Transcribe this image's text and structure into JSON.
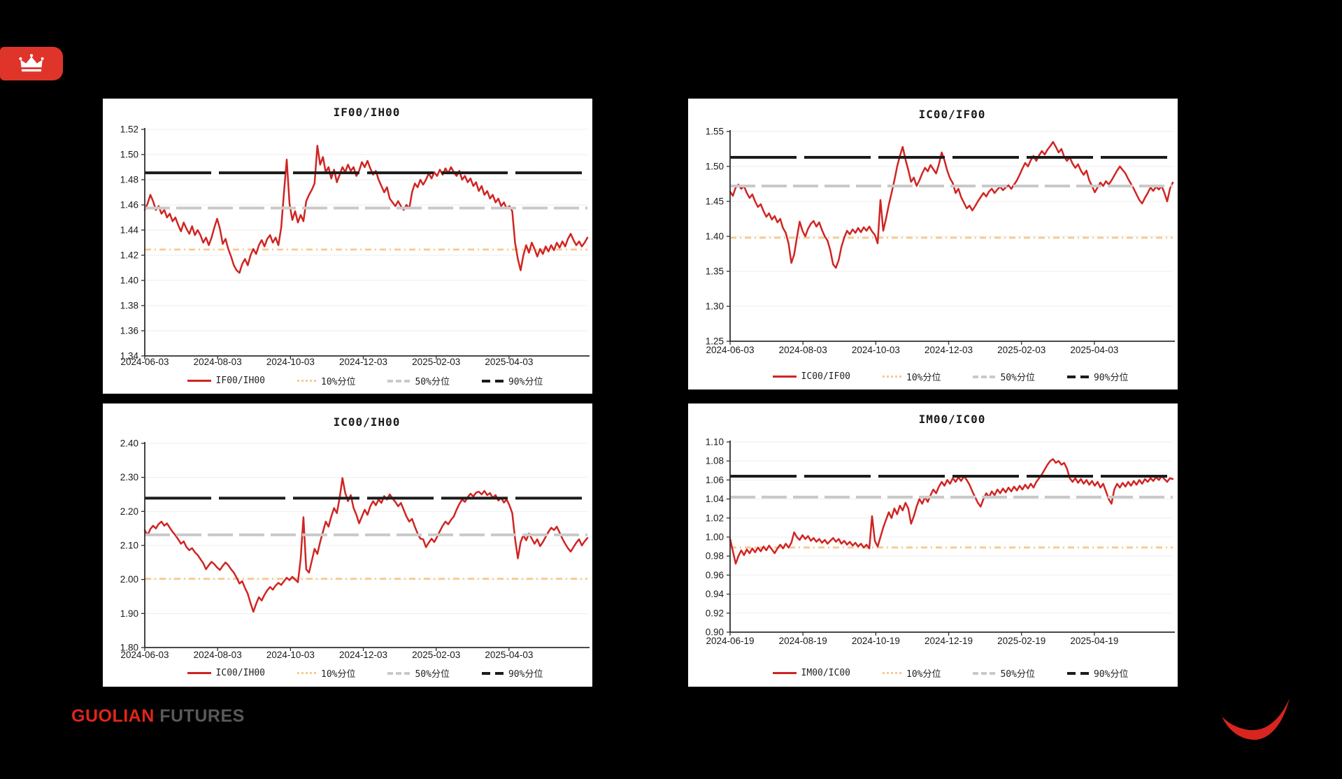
{
  "page": {
    "background": "#000000"
  },
  "brand": {
    "guolian": "GUOLIAN",
    "futures": "FUTURES",
    "guolian_color": "#e1251b",
    "futures_color": "#58595b",
    "badge_color": "#df342a",
    "swoosh_color": "#d8251f"
  },
  "style": {
    "series_color": "#cf2523",
    "p10_color": "#f8c98e",
    "p50_color": "#c9c9c9",
    "p90_color": "#1b1b1b",
    "grid_color": "#eeeeee",
    "axis_color": "#2f2f2f",
    "text_color": "#1a1a1a"
  },
  "chart_data": [
    {
      "type": "line",
      "title": "IF00/IH00",
      "series_name": "IF00/IH00",
      "legend": [
        "IF00/IH00",
        "10%分位",
        "50%分位",
        "90%分位"
      ],
      "x_tick_labels": [
        "2024-06-03",
        "2024-08-03",
        "2024-10-03",
        "2024-12-03",
        "2025-02-03",
        "2025-04-03"
      ],
      "ylim": [
        1.34,
        1.52
      ],
      "ytick_step": 0.02,
      "y_decimals": 2,
      "y_tick_labels": [
        "1.34",
        "1.36",
        "1.38",
        "1.40",
        "1.42",
        "1.44",
        "1.46",
        "1.48",
        "1.50",
        "1.52"
      ],
      "percentiles": {
        "p10": 1.4245,
        "p50": 1.4575,
        "p90": 1.4855
      },
      "values": [
        1.456,
        1.461,
        1.468,
        1.463,
        1.456,
        1.459,
        1.453,
        1.456,
        1.45,
        1.453,
        1.447,
        1.45,
        1.444,
        1.439,
        1.446,
        1.441,
        1.437,
        1.443,
        1.436,
        1.44,
        1.436,
        1.43,
        1.434,
        1.428,
        1.434,
        1.442,
        1.449,
        1.441,
        1.429,
        1.433,
        1.425,
        1.419,
        1.412,
        1.408,
        1.406,
        1.413,
        1.417,
        1.412,
        1.42,
        1.425,
        1.421,
        1.428,
        1.432,
        1.427,
        1.433,
        1.436,
        1.43,
        1.434,
        1.428,
        1.442,
        1.47,
        1.496,
        1.461,
        1.448,
        1.455,
        1.446,
        1.452,
        1.447,
        1.463,
        1.468,
        1.472,
        1.477,
        1.507,
        1.492,
        1.498,
        1.486,
        1.49,
        1.481,
        1.488,
        1.478,
        1.484,
        1.49,
        1.486,
        1.492,
        1.487,
        1.49,
        1.483,
        1.487,
        1.494,
        1.49,
        1.495,
        1.489,
        1.484,
        1.487,
        1.48,
        1.475,
        1.47,
        1.474,
        1.465,
        1.462,
        1.459,
        1.463,
        1.459,
        1.456,
        1.46,
        1.457,
        1.47,
        1.477,
        1.474,
        1.48,
        1.476,
        1.48,
        1.485,
        1.481,
        1.486,
        1.483,
        1.488,
        1.484,
        1.489,
        1.485,
        1.49,
        1.486,
        1.483,
        1.487,
        1.48,
        1.483,
        1.478,
        1.481,
        1.475,
        1.478,
        1.471,
        1.475,
        1.468,
        1.471,
        1.465,
        1.468,
        1.462,
        1.465,
        1.459,
        1.462,
        1.457,
        1.459,
        1.455,
        1.43,
        1.417,
        1.408,
        1.42,
        1.428,
        1.422,
        1.43,
        1.425,
        1.419,
        1.425,
        1.421,
        1.427,
        1.423,
        1.428,
        1.424,
        1.43,
        1.426,
        1.431,
        1.427,
        1.433,
        1.437,
        1.432,
        1.428,
        1.431,
        1.427,
        1.43,
        1.434
      ]
    },
    {
      "type": "line",
      "title": "IC00/IF00",
      "series_name": "IC00/IF00",
      "legend": [
        "IC00/IF00",
        "10%分位",
        "50%分位",
        "90%分位"
      ],
      "x_tick_labels": [
        "2024-06-03",
        "2024-08-03",
        "2024-10-03",
        "2024-12-03",
        "2025-02-03",
        "2025-04-03"
      ],
      "ylim": [
        1.25,
        1.55
      ],
      "ytick_step": 0.05,
      "y_decimals": 2,
      "y_tick_labels": [
        "1.25",
        "1.30",
        "1.35",
        "1.40",
        "1.45",
        "1.50",
        "1.55"
      ],
      "percentiles": {
        "p10": 1.398,
        "p50": 1.472,
        "p90": 1.513
      },
      "values": [
        1.464,
        1.458,
        1.47,
        1.474,
        1.468,
        1.472,
        1.462,
        1.455,
        1.46,
        1.45,
        1.442,
        1.446,
        1.436,
        1.428,
        1.433,
        1.424,
        1.429,
        1.42,
        1.425,
        1.412,
        1.405,
        1.39,
        1.362,
        1.374,
        1.398,
        1.421,
        1.408,
        1.4,
        1.411,
        1.418,
        1.422,
        1.414,
        1.42,
        1.409,
        1.4,
        1.394,
        1.38,
        1.36,
        1.355,
        1.366,
        1.385,
        1.398,
        1.408,
        1.403,
        1.41,
        1.405,
        1.412,
        1.406,
        1.413,
        1.408,
        1.414,
        1.407,
        1.402,
        1.39,
        1.452,
        1.408,
        1.425,
        1.445,
        1.462,
        1.48,
        1.5,
        1.515,
        1.528,
        1.51,
        1.495,
        1.478,
        1.484,
        1.472,
        1.48,
        1.49,
        1.498,
        1.493,
        1.502,
        1.496,
        1.49,
        1.503,
        1.52,
        1.509,
        1.494,
        1.483,
        1.476,
        1.462,
        1.468,
        1.456,
        1.448,
        1.44,
        1.444,
        1.437,
        1.443,
        1.45,
        1.456,
        1.462,
        1.457,
        1.464,
        1.468,
        1.462,
        1.467,
        1.471,
        1.466,
        1.47,
        1.473,
        1.468,
        1.474,
        1.48,
        1.488,
        1.497,
        1.505,
        1.5,
        1.509,
        1.515,
        1.508,
        1.516,
        1.522,
        1.517,
        1.524,
        1.529,
        1.535,
        1.528,
        1.52,
        1.525,
        1.514,
        1.508,
        1.513,
        1.504,
        1.498,
        1.503,
        1.494,
        1.488,
        1.494,
        1.48,
        1.472,
        1.463,
        1.47,
        1.477,
        1.472,
        1.479,
        1.474,
        1.48,
        1.487,
        1.494,
        1.5,
        1.495,
        1.49,
        1.482,
        1.475,
        1.468,
        1.46,
        1.452,
        1.447,
        1.455,
        1.462,
        1.47,
        1.465,
        1.471,
        1.467,
        1.472,
        1.462,
        1.45,
        1.468,
        1.477
      ]
    },
    {
      "type": "line",
      "title": "IC00/IH00",
      "series_name": "IC00/IH00",
      "legend": [
        "IC00/IH00",
        "10%分位",
        "50%分位",
        "90%分位"
      ],
      "x_tick_labels": [
        "2024-06-03",
        "2024-08-03",
        "2024-10-03",
        "2024-12-03",
        "2025-02-03",
        "2025-04-03"
      ],
      "ylim": [
        1.8,
        2.4
      ],
      "ytick_step": 0.1,
      "y_decimals": 2,
      "y_tick_labels": [
        "1.80",
        "1.90",
        "2.00",
        "2.10",
        "2.20",
        "2.30",
        "2.40"
      ],
      "percentiles": {
        "p10": 2.002,
        "p50": 2.131,
        "p90": 2.239
      },
      "values": [
        2.145,
        2.13,
        2.148,
        2.158,
        2.15,
        2.163,
        2.17,
        2.158,
        2.165,
        2.152,
        2.14,
        2.13,
        2.118,
        2.105,
        2.112,
        2.095,
        2.086,
        2.092,
        2.08,
        2.072,
        2.06,
        2.048,
        2.03,
        2.042,
        2.052,
        2.045,
        2.035,
        2.028,
        2.04,
        2.05,
        2.042,
        2.03,
        2.02,
        2.005,
        1.988,
        1.995,
        1.975,
        1.958,
        1.93,
        1.905,
        1.928,
        1.948,
        1.938,
        1.955,
        1.968,
        1.978,
        1.97,
        1.982,
        1.99,
        1.984,
        1.995,
        2.005,
        1.998,
        2.008,
        2.0,
        1.992,
        2.06,
        2.183,
        2.03,
        2.02,
        2.055,
        2.09,
        2.075,
        2.11,
        2.14,
        2.17,
        2.155,
        2.185,
        2.21,
        2.195,
        2.24,
        2.298,
        2.255,
        2.23,
        2.248,
        2.21,
        2.19,
        2.165,
        2.185,
        2.205,
        2.19,
        2.215,
        2.23,
        2.218,
        2.235,
        2.225,
        2.245,
        2.235,
        2.25,
        2.238,
        2.228,
        2.215,
        2.225,
        2.205,
        2.185,
        2.17,
        2.178,
        2.155,
        2.135,
        2.12,
        2.118,
        2.095,
        2.108,
        2.12,
        2.11,
        2.125,
        2.142,
        2.158,
        2.17,
        2.162,
        2.175,
        2.185,
        2.205,
        2.222,
        2.235,
        2.228,
        2.242,
        2.252,
        2.244,
        2.255,
        2.258,
        2.25,
        2.26,
        2.248,
        2.254,
        2.24,
        2.248,
        2.232,
        2.24,
        2.226,
        2.235,
        2.218,
        2.195,
        2.12,
        2.062,
        2.11,
        2.13,
        2.115,
        2.135,
        2.12,
        2.105,
        2.118,
        2.098,
        2.11,
        2.125,
        2.14,
        2.152,
        2.145,
        2.155,
        2.138,
        2.12,
        2.105,
        2.092,
        2.082,
        2.095,
        2.108,
        2.118,
        2.1,
        2.112,
        2.122
      ]
    },
    {
      "type": "line",
      "title": "IM00/IC00",
      "series_name": "IM00/IC00",
      "legend": [
        "IM00/IC00",
        "10%分位",
        "50%分位",
        "90%分位"
      ],
      "x_tick_labels": [
        "2024-06-19",
        "2024-08-19",
        "2024-10-19",
        "2024-12-19",
        "2025-02-19",
        "2025-04-19"
      ],
      "ylim": [
        0.9,
        1.1
      ],
      "ytick_step": 0.02,
      "y_decimals": 2,
      "y_tick_labels": [
        "0.90",
        "0.92",
        "0.94",
        "0.96",
        "0.98",
        "1.00",
        "1.02",
        "1.04",
        "1.06",
        "1.08",
        "1.10"
      ],
      "percentiles": {
        "p10": 0.989,
        "p50": 1.042,
        "p90": 1.064
      },
      "values": [
        0.998,
        0.985,
        0.972,
        0.98,
        0.986,
        0.981,
        0.987,
        0.983,
        0.988,
        0.984,
        0.989,
        0.985,
        0.99,
        0.986,
        0.991,
        0.987,
        0.983,
        0.988,
        0.992,
        0.988,
        0.993,
        0.989,
        0.994,
        1.005,
        1.0,
        0.997,
        1.002,
        0.998,
        1.001,
        0.996,
        0.999,
        0.995,
        0.998,
        0.994,
        0.997,
        0.993,
        0.996,
        0.999,
        0.995,
        0.998,
        0.993,
        0.996,
        0.992,
        0.995,
        0.991,
        0.994,
        0.99,
        0.993,
        0.989,
        0.992,
        0.988,
        1.022,
        0.996,
        0.99,
        1.0,
        1.01,
        1.018,
        1.026,
        1.02,
        1.03,
        1.024,
        1.033,
        1.028,
        1.036,
        1.03,
        1.014,
        1.022,
        1.032,
        1.04,
        1.035,
        1.042,
        1.037,
        1.044,
        1.05,
        1.046,
        1.053,
        1.058,
        1.054,
        1.06,
        1.056,
        1.062,
        1.058,
        1.063,
        1.059,
        1.064,
        1.06,
        1.055,
        1.048,
        1.042,
        1.036,
        1.032,
        1.04,
        1.046,
        1.042,
        1.048,
        1.044,
        1.05,
        1.046,
        1.051,
        1.047,
        1.052,
        1.048,
        1.053,
        1.049,
        1.054,
        1.05,
        1.055,
        1.051,
        1.056,
        1.052,
        1.058,
        1.062,
        1.066,
        1.071,
        1.076,
        1.08,
        1.082,
        1.078,
        1.08,
        1.076,
        1.078,
        1.072,
        1.062,
        1.058,
        1.062,
        1.057,
        1.061,
        1.056,
        1.06,
        1.055,
        1.059,
        1.054,
        1.058,
        1.052,
        1.056,
        1.048,
        1.04,
        1.035,
        1.05,
        1.056,
        1.052,
        1.057,
        1.053,
        1.058,
        1.054,
        1.059,
        1.055,
        1.06,
        1.056,
        1.061,
        1.058,
        1.062,
        1.059,
        1.063,
        1.06,
        1.064,
        1.061,
        1.058,
        1.062,
        1.061
      ]
    }
  ]
}
